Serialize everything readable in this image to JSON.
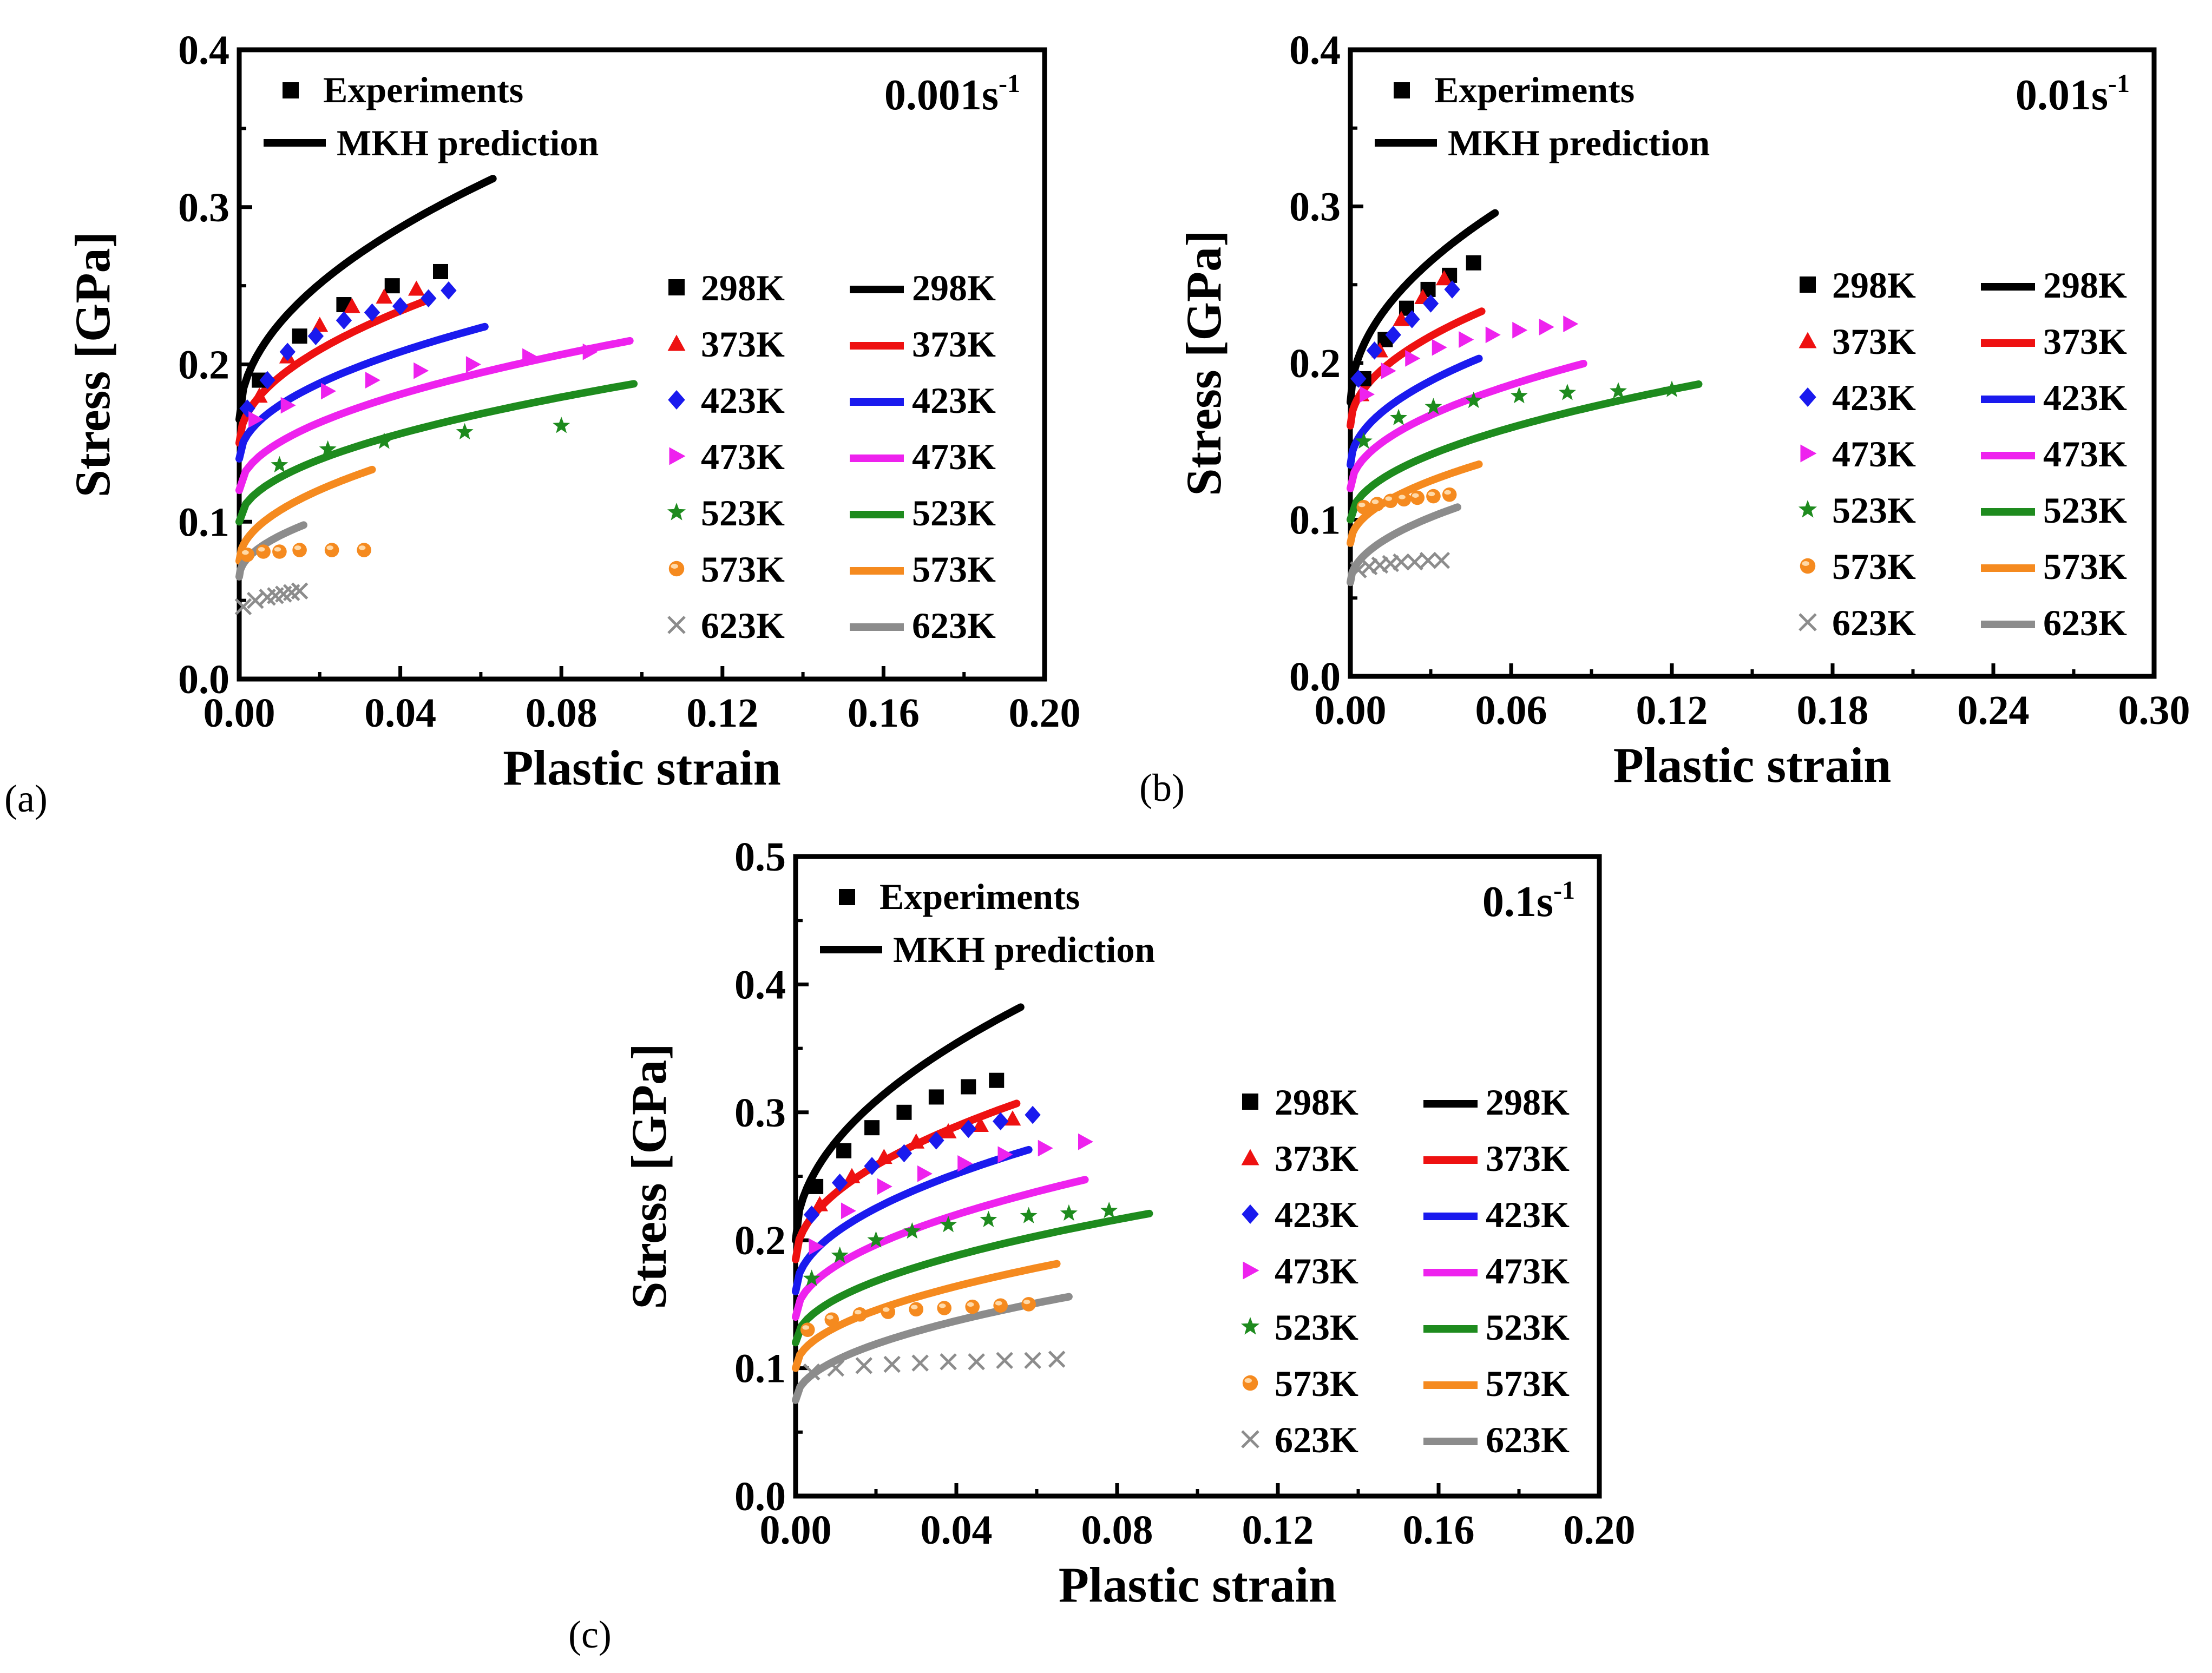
{
  "figure": {
    "panel_labels": [
      "(a)",
      "(b)",
      "(c)"
    ]
  },
  "legend": {
    "experiments_label": "Experiments",
    "model_label": "MKH prediction"
  },
  "temps": [
    "298K",
    "373K",
    "423K",
    "473K",
    "523K",
    "573K",
    "623K"
  ],
  "styles": {
    "colors": [
      "#000000",
      "#ee1111",
      "#1a1aee",
      "#ee22ee",
      "#1e8b1e",
      "#f58a1f",
      "#8c8c8c"
    ],
    "markers": [
      "square",
      "triangle",
      "diamond",
      "right-triangle",
      "star",
      "circle",
      "x-cross"
    ]
  },
  "chart_data": [
    {
      "type": "scatter",
      "title": "",
      "rate_label": "0.001s",
      "rate_sup": "-1",
      "xlabel": "Plastic strain",
      "ylabel": "Stress [GPa]",
      "xlim": [
        0,
        0.2
      ],
      "ylim": [
        0,
        0.4
      ],
      "xticks": [
        0.0,
        0.04,
        0.08,
        0.12,
        0.16,
        0.2
      ],
      "yticks": [
        0.0,
        0.1,
        0.2,
        0.3,
        0.4
      ],
      "xtick_labels": [
        "0.00",
        "0.04",
        "0.08",
        "0.12",
        "0.16",
        "0.20"
      ],
      "ytick_labels": [
        "0.0",
        "0.1",
        "0.2",
        "0.3",
        "0.4"
      ],
      "experiments": [
        {
          "name": "298K",
          "x": [
            0.005,
            0.015,
            0.026,
            0.038,
            0.05
          ],
          "y": [
            0.19,
            0.218,
            0.238,
            0.25,
            0.259
          ]
        },
        {
          "name": "373K",
          "x": [
            0.005,
            0.012,
            0.02,
            0.028,
            0.036,
            0.044
          ],
          "y": [
            0.18,
            0.205,
            0.225,
            0.237,
            0.243,
            0.248
          ]
        },
        {
          "name": "423K",
          "x": [
            0.002,
            0.007,
            0.012,
            0.019,
            0.026,
            0.033,
            0.04,
            0.047,
            0.052
          ],
          "y": [
            0.172,
            0.19,
            0.208,
            0.218,
            0.228,
            0.233,
            0.237,
            0.242,
            0.247
          ]
        },
        {
          "name": "473K",
          "x": [
            0.004,
            0.012,
            0.022,
            0.033,
            0.045,
            0.058,
            0.072,
            0.087
          ],
          "y": [
            0.165,
            0.174,
            0.183,
            0.19,
            0.196,
            0.2,
            0.205,
            0.208
          ]
        },
        {
          "name": "523K",
          "x": [
            0.01,
            0.022,
            0.036,
            0.056,
            0.08
          ],
          "y": [
            0.136,
            0.146,
            0.151,
            0.157,
            0.161
          ]
        },
        {
          "name": "573K",
          "x": [
            0.002,
            0.006,
            0.01,
            0.015,
            0.023,
            0.031
          ],
          "y": [
            0.079,
            0.081,
            0.081,
            0.082,
            0.082,
            0.082
          ]
        },
        {
          "name": "623K",
          "x": [
            0.001,
            0.004,
            0.007,
            0.009,
            0.011,
            0.013,
            0.015
          ],
          "y": [
            0.046,
            0.05,
            0.052,
            0.053,
            0.054,
            0.055,
            0.056
          ]
        }
      ],
      "predictions": [
        {
          "name": "298K",
          "y0": 0.165,
          "k": 0.61,
          "n": 0.5,
          "xmax": 0.063
        },
        {
          "name": "373K",
          "y0": 0.15,
          "k": 0.42,
          "n": 0.5,
          "xmax": 0.047
        },
        {
          "name": "423K",
          "y0": 0.14,
          "k": 0.34,
          "n": 0.5,
          "xmax": 0.061
        },
        {
          "name": "473K",
          "y0": 0.12,
          "k": 0.305,
          "n": 0.5,
          "xmax": 0.097
        },
        {
          "name": "523K",
          "y0": 0.1,
          "k": 0.28,
          "n": 0.5,
          "xmax": 0.098
        },
        {
          "name": "573K",
          "y0": 0.075,
          "k": 0.32,
          "n": 0.5,
          "xmax": 0.033
        },
        {
          "name": "623K",
          "y0": 0.065,
          "k": 0.26,
          "n": 0.5,
          "xmax": 0.016
        }
      ]
    },
    {
      "type": "scatter",
      "title": "",
      "rate_label": "0.01s",
      "rate_sup": "-1",
      "xlabel": "Plastic strain",
      "ylabel": "Stress [GPa]",
      "xlim": [
        0,
        0.3
      ],
      "ylim": [
        0,
        0.4
      ],
      "xticks": [
        0.0,
        0.06,
        0.12,
        0.18,
        0.24,
        0.3
      ],
      "yticks": [
        0.0,
        0.1,
        0.2,
        0.3,
        0.4
      ],
      "xtick_labels": [
        "0.00",
        "0.06",
        "0.12",
        "0.18",
        "0.24",
        "0.30"
      ],
      "ytick_labels": [
        "0.0",
        "0.1",
        "0.2",
        "0.3",
        "0.4"
      ],
      "experiments": [
        {
          "name": "298K",
          "x": [
            0.005,
            0.013,
            0.021,
            0.029,
            0.037,
            0.046
          ],
          "y": [
            0.19,
            0.215,
            0.235,
            0.247,
            0.256,
            0.264
          ]
        },
        {
          "name": "373K",
          "x": [
            0.004,
            0.011,
            0.019,
            0.027,
            0.035
          ],
          "y": [
            0.18,
            0.208,
            0.228,
            0.242,
            0.254
          ]
        },
        {
          "name": "423K",
          "x": [
            0.003,
            0.009,
            0.016,
            0.023,
            0.03,
            0.038
          ],
          "y": [
            0.19,
            0.208,
            0.218,
            0.228,
            0.238,
            0.247
          ]
        },
        {
          "name": "473K",
          "x": [
            0.006,
            0.014,
            0.023,
            0.033,
            0.043,
            0.053,
            0.063,
            0.073,
            0.082
          ],
          "y": [
            0.18,
            0.195,
            0.203,
            0.21,
            0.215,
            0.218,
            0.221,
            0.223,
            0.225
          ]
        },
        {
          "name": "523K",
          "x": [
            0.005,
            0.018,
            0.031,
            0.046,
            0.063,
            0.081,
            0.1,
            0.12
          ],
          "y": [
            0.15,
            0.165,
            0.172,
            0.176,
            0.179,
            0.181,
            0.182,
            0.183
          ]
        },
        {
          "name": "573K",
          "x": [
            0.005,
            0.01,
            0.015,
            0.02,
            0.025,
            0.031,
            0.037
          ],
          "y": [
            0.108,
            0.11,
            0.112,
            0.113,
            0.114,
            0.115,
            0.116
          ]
        },
        {
          "name": "623K",
          "x": [
            0.003,
            0.007,
            0.011,
            0.015,
            0.019,
            0.024,
            0.029,
            0.034
          ],
          "y": [
            0.068,
            0.07,
            0.071,
            0.072,
            0.073,
            0.073,
            0.074,
            0.074
          ]
        }
      ],
      "predictions": [
        {
          "name": "298K",
          "y0": 0.175,
          "k": 0.52,
          "n": 0.5,
          "xmax": 0.054
        },
        {
          "name": "373K",
          "y0": 0.16,
          "k": 0.33,
          "n": 0.5,
          "xmax": 0.049
        },
        {
          "name": "423K",
          "y0": 0.135,
          "k": 0.31,
          "n": 0.5,
          "xmax": 0.048
        },
        {
          "name": "473K",
          "y0": 0.12,
          "k": 0.27,
          "n": 0.5,
          "xmax": 0.087
        },
        {
          "name": "523K",
          "y0": 0.1,
          "k": 0.24,
          "n": 0.5,
          "xmax": 0.13
        },
        {
          "name": "573K",
          "y0": 0.085,
          "k": 0.23,
          "n": 0.5,
          "xmax": 0.048
        },
        {
          "name": "623K",
          "y0": 0.06,
          "k": 0.24,
          "n": 0.5,
          "xmax": 0.04
        }
      ]
    },
    {
      "type": "scatter",
      "title": "",
      "rate_label": "0.1s",
      "rate_sup": "-1",
      "xlabel": "Plastic strain",
      "ylabel": "Stress [GPa]",
      "xlim": [
        0,
        0.2
      ],
      "ylim": [
        0,
        0.5
      ],
      "xticks": [
        0.0,
        0.04,
        0.08,
        0.12,
        0.16,
        0.2
      ],
      "yticks": [
        0.0,
        0.1,
        0.2,
        0.3,
        0.4,
        0.5
      ],
      "xtick_labels": [
        "0.00",
        "0.04",
        "0.08",
        "0.12",
        "0.16",
        "0.20"
      ],
      "ytick_labels": [
        "0.0",
        "0.1",
        "0.2",
        "0.3",
        "0.4",
        "0.5"
      ],
      "experiments": [
        {
          "name": "298K",
          "x": [
            0.005,
            0.012,
            0.019,
            0.027,
            0.035,
            0.043,
            0.05
          ],
          "y": [
            0.242,
            0.27,
            0.288,
            0.3,
            0.312,
            0.32,
            0.325
          ]
        },
        {
          "name": "373K",
          "x": [
            0.006,
            0.014,
            0.022,
            0.03,
            0.038,
            0.046,
            0.054
          ],
          "y": [
            0.228,
            0.25,
            0.265,
            0.277,
            0.285,
            0.29,
            0.295
          ]
        },
        {
          "name": "423K",
          "x": [
            0.004,
            0.011,
            0.019,
            0.027,
            0.035,
            0.043,
            0.051,
            0.059
          ],
          "y": [
            0.22,
            0.245,
            0.258,
            0.268,
            0.278,
            0.287,
            0.293,
            0.298
          ]
        },
        {
          "name": "473K",
          "x": [
            0.005,
            0.013,
            0.022,
            0.032,
            0.042,
            0.052,
            0.062,
            0.072
          ],
          "y": [
            0.195,
            0.223,
            0.242,
            0.252,
            0.26,
            0.267,
            0.272,
            0.277
          ]
        },
        {
          "name": "523K",
          "x": [
            0.004,
            0.011,
            0.02,
            0.029,
            0.038,
            0.048,
            0.058,
            0.068,
            0.078
          ],
          "y": [
            0.17,
            0.188,
            0.2,
            0.207,
            0.212,
            0.216,
            0.219,
            0.221,
            0.223
          ]
        },
        {
          "name": "573K",
          "x": [
            0.003,
            0.009,
            0.016,
            0.023,
            0.03,
            0.037,
            0.044,
            0.051,
            0.058
          ],
          "y": [
            0.13,
            0.138,
            0.142,
            0.144,
            0.146,
            0.147,
            0.148,
            0.149,
            0.15
          ]
        },
        {
          "name": "623K",
          "x": [
            0.004,
            0.01,
            0.017,
            0.024,
            0.031,
            0.038,
            0.045,
            0.052,
            0.059,
            0.065
          ],
          "y": [
            0.097,
            0.1,
            0.102,
            0.103,
            0.104,
            0.105,
            0.105,
            0.106,
            0.106,
            0.107
          ]
        }
      ],
      "predictions": [
        {
          "name": "298K",
          "y0": 0.2,
          "k": 0.77,
          "n": 0.5,
          "xmax": 0.056
        },
        {
          "name": "373K",
          "y0": 0.185,
          "k": 0.52,
          "n": 0.5,
          "xmax": 0.055
        },
        {
          "name": "423K",
          "y0": 0.16,
          "k": 0.46,
          "n": 0.5,
          "xmax": 0.058
        },
        {
          "name": "473K",
          "y0": 0.14,
          "k": 0.4,
          "n": 0.5,
          "xmax": 0.072
        },
        {
          "name": "523K",
          "y0": 0.12,
          "k": 0.34,
          "n": 0.5,
          "xmax": 0.088
        },
        {
          "name": "573K",
          "y0": 0.1,
          "k": 0.32,
          "n": 0.5,
          "xmax": 0.065
        },
        {
          "name": "623K",
          "y0": 0.075,
          "k": 0.31,
          "n": 0.5,
          "xmax": 0.068
        }
      ]
    }
  ]
}
